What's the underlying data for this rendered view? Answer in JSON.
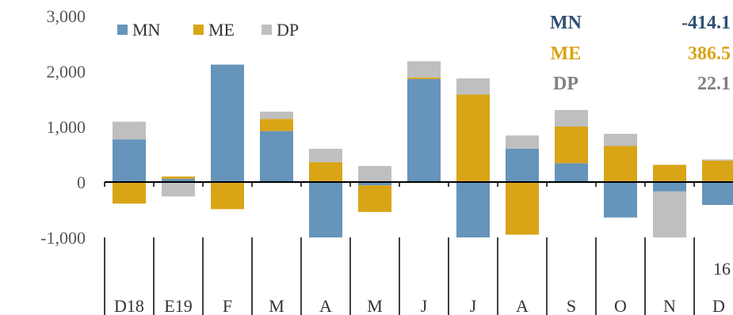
{
  "chart_data": {
    "type": "bar",
    "stacked": true,
    "categories": [
      "D18",
      "E19",
      "F",
      "M",
      "A",
      "M",
      "J",
      "J",
      "A",
      "S",
      "O",
      "N",
      "D"
    ],
    "series": [
      {
        "name": "MN",
        "color": "#6694BA",
        "values": [
          770,
          60,
          2120,
          920,
          -1000,
          -60,
          1860,
          -1000,
          600,
          340,
          -640,
          -170,
          -414.1
        ]
      },
      {
        "name": "ME",
        "color": "#D9A416",
        "values": [
          -390,
          40,
          -490,
          220,
          360,
          -480,
          30,
          1580,
          -950,
          660,
          650,
          310,
          386.5
        ]
      },
      {
        "name": "DP",
        "color": "#BFBFBF",
        "values": [
          320,
          -260,
          0,
          130,
          240,
          290,
          290,
          290,
          240,
          300,
          220,
          -830,
          22.1
        ]
      }
    ],
    "ylim": [
      -1000,
      3000
    ],
    "yticks": [
      {
        "value": 3000,
        "label": "3,000",
        "color": "#555555"
      },
      {
        "value": 2000,
        "label": "2,000",
        "color": "#555555"
      },
      {
        "value": 1000,
        "label": "1,000",
        "color": "#555555"
      },
      {
        "value": 0,
        "label": "0",
        "color": "#555555"
      },
      {
        "value": -1000,
        "label": "-1,000",
        "color": "#E00000"
      }
    ],
    "legend": {
      "position": "top-left",
      "items": [
        "MN",
        "ME",
        "DP"
      ]
    },
    "annotation": [
      {
        "label": "MN",
        "value": "-414.1",
        "color": "#2F4F73"
      },
      {
        "label": "ME",
        "value": "386.5",
        "color": "#D9A416"
      },
      {
        "label": "DP",
        "value": "22.1",
        "color": "#808080"
      }
    ],
    "footnote": "16",
    "grid": false
  }
}
